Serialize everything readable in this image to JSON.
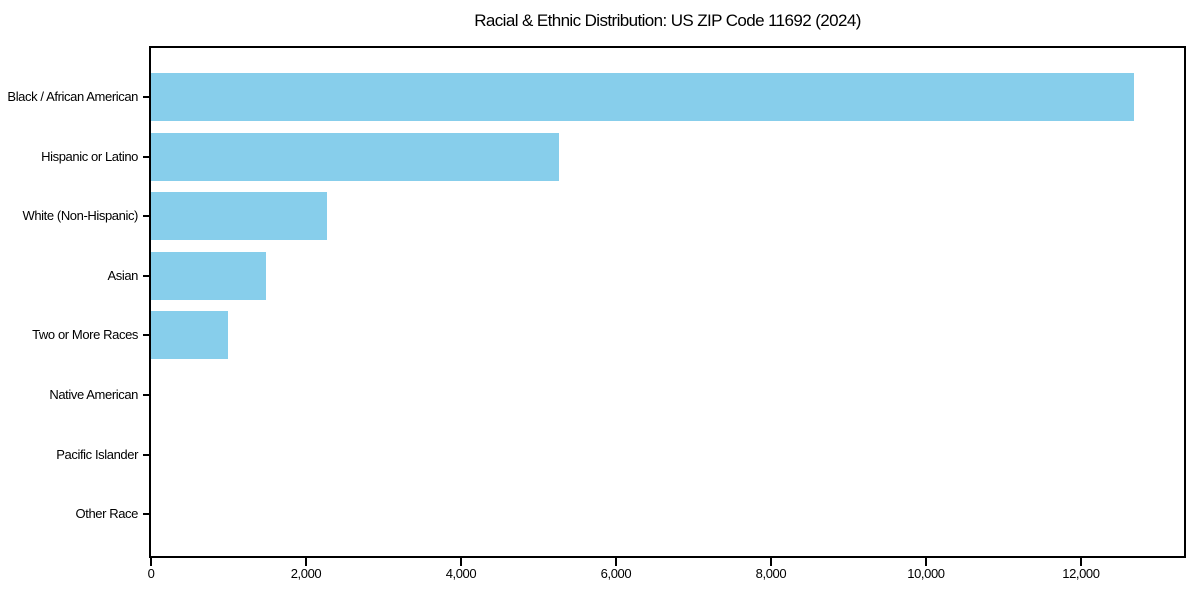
{
  "chart_data": {
    "type": "bar",
    "orientation": "horizontal",
    "title": "Racial & Ethnic Distribution: US ZIP Code 11692 (2024)",
    "categories": [
      "Black / African American",
      "Hispanic or Latino",
      "White (Non-Hispanic)",
      "Asian",
      "Two or More Races",
      "Native American",
      "Pacific Islander",
      "Other Race"
    ],
    "values": [
      12690,
      5270,
      2270,
      1480,
      1000,
      0,
      0,
      0
    ],
    "xlabel": "",
    "ylabel": "",
    "xlim": [
      0,
      13330
    ],
    "xticks": [
      0,
      2000,
      4000,
      6000,
      8000,
      10000,
      12000
    ],
    "xtick_labels": [
      "0",
      "2,000",
      "4,000",
      "6,000",
      "8,000",
      "10,000",
      "12,000"
    ],
    "bar_color": "#87CEEB",
    "axis_color": "#000000",
    "background_color": "#ffffff",
    "grid": false,
    "legend": null
  }
}
